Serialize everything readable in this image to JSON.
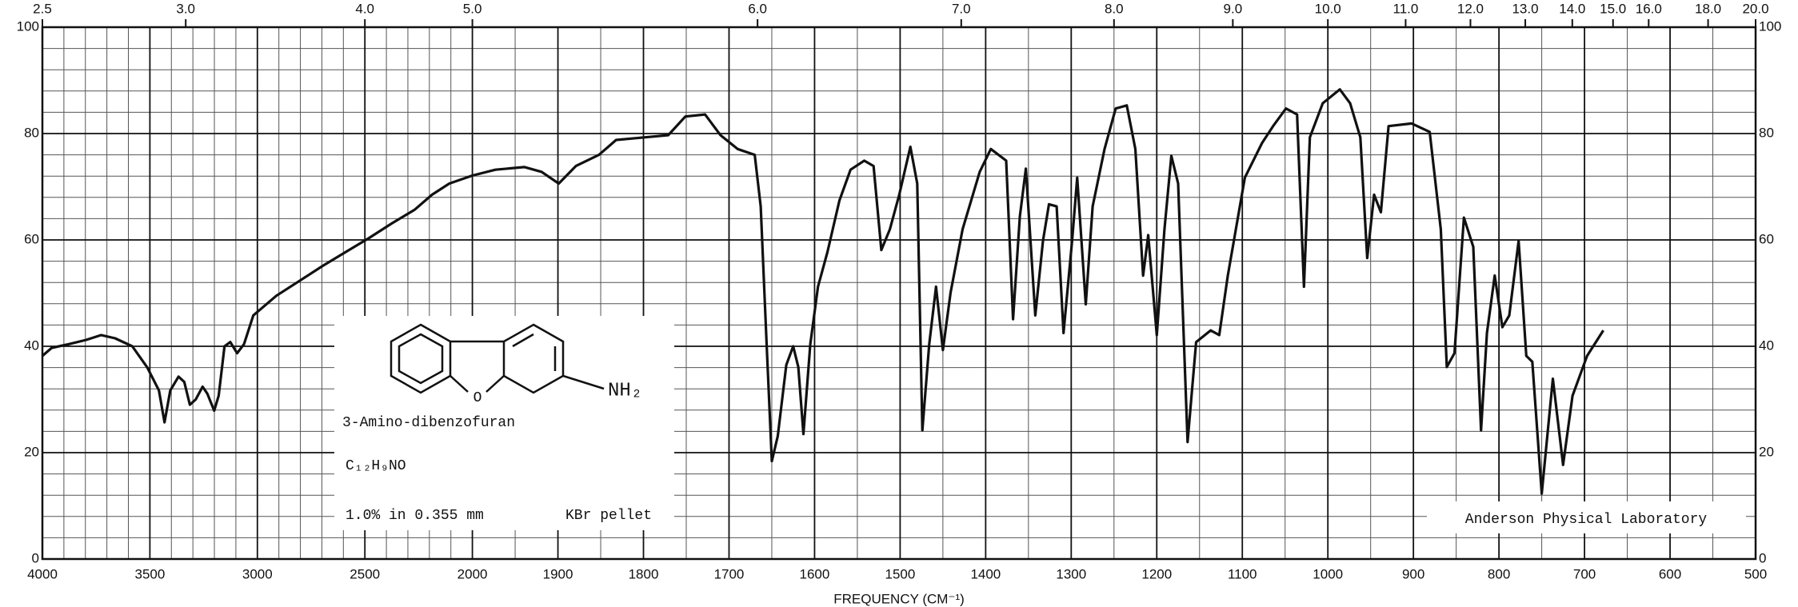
{
  "chart_data": {
    "type": "line",
    "x_axis_title": "FREQUENCY (CM⁻¹)",
    "x": [
      4000,
      3957,
      3877,
      3796,
      3727,
      3662,
      3582,
      3512,
      3458,
      3432,
      3405,
      3367,
      3340,
      3314,
      3287,
      3255,
      3233,
      3201,
      3180,
      3153,
      3126,
      3094,
      3062,
      3019,
      2912,
      2804,
      2697,
      2590,
      2483,
      2375,
      2268,
      2188,
      2107,
      2000,
      1973,
      1939,
      1919,
      1899,
      1879,
      1852,
      1832,
      1798,
      1771,
      1751,
      1728,
      1710,
      1690,
      1670,
      1663,
      1656,
      1650,
      1643,
      1633,
      1625,
      1619,
      1613,
      1605,
      1596,
      1585,
      1571,
      1558,
      1542,
      1531,
      1522,
      1512,
      1501,
      1488,
      1480,
      1474,
      1466,
      1458,
      1450,
      1441,
      1427,
      1407,
      1394,
      1376,
      1368,
      1360,
      1353,
      1342,
      1333,
      1326,
      1317,
      1309,
      1299,
      1293,
      1283,
      1275,
      1261,
      1248,
      1235,
      1225,
      1216,
      1210,
      1200,
      1191,
      1183,
      1175,
      1164,
      1154,
      1137,
      1127,
      1117,
      1097,
      1077,
      1064,
      1049,
      1036,
      1028,
      1021,
      1006,
      986,
      974,
      962,
      954,
      946,
      938,
      929,
      902,
      881,
      868,
      861,
      852,
      841,
      830,
      821,
      814,
      805,
      796,
      788,
      777,
      768,
      761,
      750,
      737,
      725,
      714,
      697,
      678
    ],
    "values": [
      38.2,
      39.7,
      40.4,
      41.2,
      42.1,
      41.5,
      40,
      36,
      31.7,
      25.7,
      31.7,
      34.3,
      33.3,
      29,
      30,
      32.4,
      31.1,
      27.9,
      30.7,
      40,
      40.8,
      38.7,
      40.4,
      45.8,
      49.5,
      52.3,
      55.1,
      57.7,
      60.3,
      63.1,
      65.7,
      68.5,
      70.6,
      72.1,
      73.2,
      73.7,
      72.8,
      70.6,
      73.9,
      76,
      78.8,
      79.3,
      79.7,
      83.2,
      83.6,
      79.7,
      77.1,
      76,
      66.3,
      40.4,
      18.4,
      23.1,
      36.5,
      40,
      36.1,
      23.5,
      40.4,
      51.2,
      57.7,
      67.4,
      73.2,
      74.9,
      73.9,
      58.1,
      62,
      68.5,
      77.5,
      70.6,
      24.2,
      40.4,
      51.2,
      39.3,
      50.1,
      62,
      72.8,
      77.1,
      74.9,
      45.1,
      64.4,
      73.4,
      45.8,
      59.8,
      66.7,
      66.3,
      42.5,
      59.8,
      71.7,
      47.9,
      66.3,
      77.1,
      84.7,
      85.3,
      77.1,
      53.3,
      60.9,
      42.1,
      62,
      75.8,
      70.6,
      22,
      40.8,
      43,
      42.1,
      53.3,
      71.7,
      78.2,
      81.4,
      84.7,
      83.6,
      51.2,
      79.3,
      85.7,
      88.3,
      85.7,
      79.3,
      56.6,
      68.5,
      65.2,
      81.4,
      81.9,
      80.3,
      62,
      36.1,
      38.7,
      64.2,
      58.7,
      24.2,
      42.5,
      53.3,
      43.6,
      45.8,
      59.8,
      38.2,
      37.1,
      12.3,
      33.9,
      17.7,
      30.7,
      38.2,
      43
    ],
    "color": "#111111",
    "xlim": [
      4000,
      500
    ],
    "xticks": [
      4000,
      3500,
      3000,
      2500,
      2000,
      1900,
      1800,
      1700,
      1600,
      1500,
      1400,
      1300,
      1200,
      1100,
      1000,
      900,
      800,
      700,
      600,
      500
    ],
    "ylim": [
      0,
      100
    ],
    "yticks": [
      0,
      20,
      40,
      60,
      80,
      100
    ],
    "top_ticks": [
      {
        "value": 2.5,
        "label": "2.5"
      },
      {
        "value": 3,
        "label": "3.0"
      },
      {
        "value": 4,
        "label": "4.0"
      },
      {
        "value": 5,
        "label": "5.0"
      },
      {
        "value": 6,
        "label": "6.0"
      },
      {
        "value": 7,
        "label": "7.0"
      },
      {
        "value": 8,
        "label": "8.0"
      },
      {
        "value": 9,
        "label": "9.0"
      },
      {
        "value": 10,
        "label": "10.0"
      },
      {
        "value": 11,
        "label": "11.0"
      },
      {
        "value": 12,
        "label": "12.0"
      },
      {
        "value": 13,
        "label": "13.0"
      },
      {
        "value": 14,
        "label": "14.0"
      },
      {
        "value": 15,
        "label": "15.0"
      },
      {
        "value": 16,
        "label": "16.0"
      },
      {
        "value": 18,
        "label": "18.0"
      },
      {
        "value": 20,
        "label": "20.0"
      }
    ],
    "grid": true,
    "annotations": {
      "compound": "3-Amino-dibenzofuran",
      "group": "NH₂",
      "formula": "C₁₂H₉NO",
      "sample": "1.0% in 0.355 mm",
      "medium": "KBr pellet",
      "lab": "Anderson Physical Laboratory"
    }
  }
}
